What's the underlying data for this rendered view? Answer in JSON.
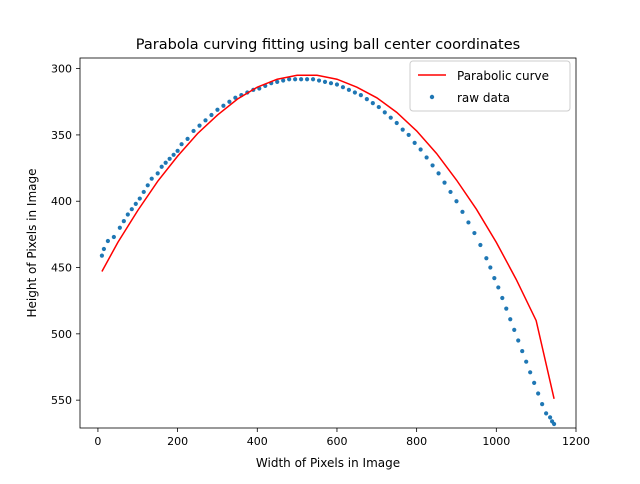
{
  "chart_data": {
    "type": "scatter",
    "title": "Parabola curving fitting using ball center coordinates",
    "xlabel": "Width of Pixels in Image",
    "ylabel": "Height of Pixels in Image",
    "xlim": [
      -45,
      1200
    ],
    "ylim": [
      571,
      292
    ],
    "y_inverted": true,
    "xticks": [
      0,
      200,
      400,
      600,
      800,
      1000,
      1200
    ],
    "xtick_labels": [
      "0",
      "200",
      "400",
      "600",
      "800",
      "1000",
      "1200"
    ],
    "yticks": [
      300,
      350,
      400,
      450,
      500,
      550
    ],
    "ytick_labels": [
      "300",
      "350",
      "400",
      "450",
      "500",
      "550"
    ],
    "grid": false,
    "legend_position": "upper-right",
    "fit_curve": {
      "name": "Parabolic curve",
      "color": "#ff0000",
      "x": [
        10,
        50,
        100,
        150,
        200,
        250,
        300,
        350,
        400,
        450,
        500,
        550,
        600,
        650,
        700,
        750,
        800,
        850,
        900,
        950,
        1000,
        1050,
        1100,
        1145
      ],
      "y": [
        453,
        431,
        407,
        385,
        366,
        349,
        335,
        323,
        314,
        308,
        305,
        305,
        308,
        314,
        322,
        333,
        347,
        364,
        384,
        406,
        431,
        459,
        490,
        549
      ]
    },
    "series": [
      {
        "name": "raw data",
        "color": "#1f77b4",
        "x": [
          10,
          15,
          25,
          40,
          55,
          65,
          75,
          85,
          95,
          105,
          115,
          125,
          135,
          150,
          160,
          170,
          180,
          190,
          200,
          210,
          225,
          240,
          255,
          270,
          285,
          300,
          315,
          330,
          345,
          360,
          375,
          390,
          405,
          420,
          435,
          450,
          465,
          480,
          495,
          510,
          525,
          540,
          555,
          570,
          585,
          600,
          615,
          630,
          645,
          660,
          675,
          690,
          705,
          720,
          735,
          750,
          765,
          780,
          795,
          810,
          825,
          840,
          855,
          870,
          885,
          900,
          915,
          930,
          945,
          960,
          975,
          985,
          995,
          1005,
          1015,
          1025,
          1035,
          1045,
          1055,
          1065,
          1075,
          1085,
          1095,
          1105,
          1115,
          1125,
          1135,
          1140,
          1145
        ],
        "y": [
          441,
          436,
          430,
          427,
          420,
          415,
          410,
          406,
          402,
          398,
          393,
          388,
          383,
          379,
          374,
          371,
          368,
          365,
          362,
          357,
          353,
          347,
          343,
          339,
          335,
          331,
          328,
          325,
          322,
          320,
          318,
          316,
          315,
          313,
          311,
          310,
          309,
          308,
          308,
          308,
          308,
          308,
          309,
          310,
          311,
          312,
          314,
          316,
          318,
          320,
          323,
          326,
          329,
          333,
          337,
          341,
          346,
          350,
          356,
          361,
          367,
          373,
          379,
          386,
          393,
          400,
          408,
          416,
          424,
          433,
          443,
          450,
          458,
          465,
          473,
          481,
          489,
          497,
          505,
          513,
          521,
          529,
          537,
          545,
          553,
          560,
          563,
          566,
          568
        ]
      }
    ]
  }
}
